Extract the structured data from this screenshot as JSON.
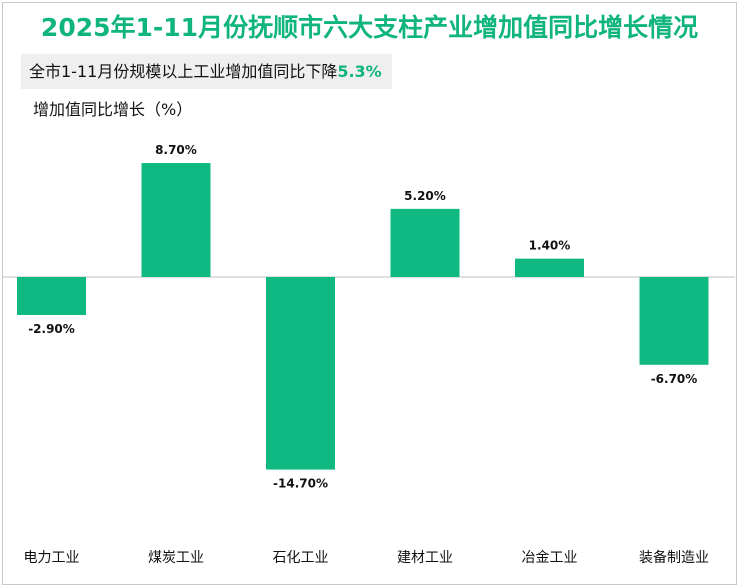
{
  "chart_data": {
    "type": "bar",
    "title": "2025年1-11月份抚顺市六大支柱产业增加值同比增长情况",
    "subtitle_prefix": "全市1-11月份规模以上工业增加值同比下降",
    "subtitle_value": "5.3%",
    "ylabel": "增加值同比增长（%）",
    "xlabel": "",
    "categories": [
      "电力工业",
      "煤炭工业",
      "石化工业",
      "建材工业",
      "冶金工业",
      "装备制造业"
    ],
    "values": [
      -2.9,
      8.7,
      -14.7,
      5.2,
      1.4,
      -6.7
    ],
    "labels": [
      "-2.90%",
      "8.70%",
      "-14.70%",
      "5.20%",
      "1.40%",
      "-6.70%"
    ],
    "ylim": [
      -16,
      10
    ],
    "grid": false,
    "bar_color": "#10b981"
  }
}
